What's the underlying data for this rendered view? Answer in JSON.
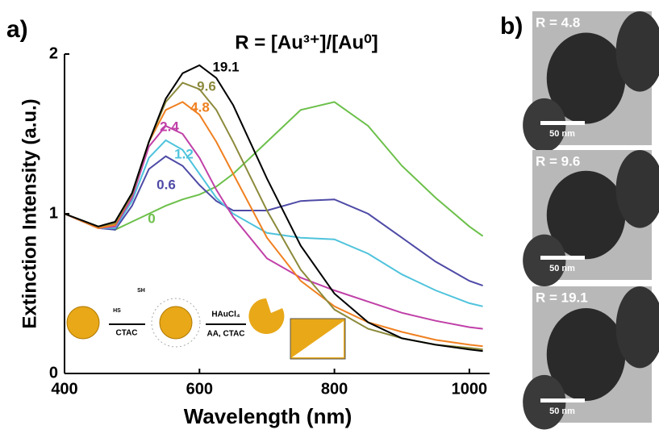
{
  "panel_labels": [
    "a)",
    "b)"
  ],
  "chart_data": {
    "type": "line",
    "title": "R = [Au³⁺]/[Au⁰]",
    "x_label": "Wavelength (nm)",
    "y_label": "Extinction Intensity (a.u.)",
    "x": [
      400,
      450,
      475,
      500,
      525,
      550,
      575,
      600,
      625,
      650,
      700,
      750,
      800,
      850,
      900,
      950,
      1000,
      1020
    ],
    "series": [
      {
        "name": "0",
        "color": "#6cc04a",
        "values": [
          1.0,
          0.92,
          0.9,
          0.95,
          1.0,
          1.05,
          1.09,
          1.12,
          1.17,
          1.25,
          1.45,
          1.65,
          1.7,
          1.55,
          1.3,
          1.1,
          0.92,
          0.86
        ]
      },
      {
        "name": "0.6",
        "color": "#4e4aa6",
        "values": [
          1.0,
          0.91,
          0.9,
          1.05,
          1.28,
          1.36,
          1.3,
          1.18,
          1.08,
          1.02,
          1.02,
          1.08,
          1.09,
          1.0,
          0.85,
          0.7,
          0.58,
          0.55
        ]
      },
      {
        "name": "1.2",
        "color": "#4fc3dc",
        "values": [
          1.0,
          0.91,
          0.91,
          1.08,
          1.35,
          1.46,
          1.4,
          1.25,
          1.1,
          1.0,
          0.88,
          0.85,
          0.84,
          0.75,
          0.62,
          0.52,
          0.44,
          0.42
        ]
      },
      {
        "name": "2.4",
        "color": "#c040a8",
        "values": [
          1.0,
          0.91,
          0.92,
          1.1,
          1.42,
          1.55,
          1.5,
          1.35,
          1.15,
          0.98,
          0.72,
          0.6,
          0.52,
          0.45,
          0.38,
          0.33,
          0.29,
          0.28
        ]
      },
      {
        "name": "4.8",
        "color": "#f08020",
        "values": [
          1.0,
          0.91,
          0.93,
          1.12,
          1.45,
          1.65,
          1.7,
          1.62,
          1.45,
          1.25,
          0.85,
          0.58,
          0.42,
          0.32,
          0.26,
          0.21,
          0.18,
          0.17
        ]
      },
      {
        "name": "9.6",
        "color": "#8c8a3c",
        "values": [
          1.0,
          0.92,
          0.94,
          1.12,
          1.45,
          1.7,
          1.82,
          1.78,
          1.65,
          1.45,
          1.02,
          0.65,
          0.4,
          0.28,
          0.22,
          0.18,
          0.16,
          0.15
        ]
      },
      {
        "name": "19.1",
        "color": "#000000",
        "values": [
          1.0,
          0.92,
          0.95,
          1.13,
          1.45,
          1.72,
          1.88,
          1.93,
          1.85,
          1.68,
          1.22,
          0.8,
          0.5,
          0.32,
          0.22,
          0.18,
          0.15,
          0.14
        ]
      }
    ],
    "xlim": [
      400,
      1030
    ],
    "ylim": [
      0,
      2
    ],
    "xticks": [
      400,
      600,
      800,
      1000
    ],
    "yticks": [
      0,
      1,
      2
    ]
  },
  "schematic": {
    "ligand_top": "SH",
    "ligand_left": "HS",
    "step1": "CTAC",
    "step2_top": "HAuCl₄",
    "step2_bottom": "AA, CTAC"
  },
  "tem_images": [
    {
      "label": "R = 4.8",
      "scale": "50 nm"
    },
    {
      "label": "R = 9.6",
      "scale": "50 nm"
    },
    {
      "label": "R = 19.1",
      "scale": "50 nm"
    }
  ]
}
